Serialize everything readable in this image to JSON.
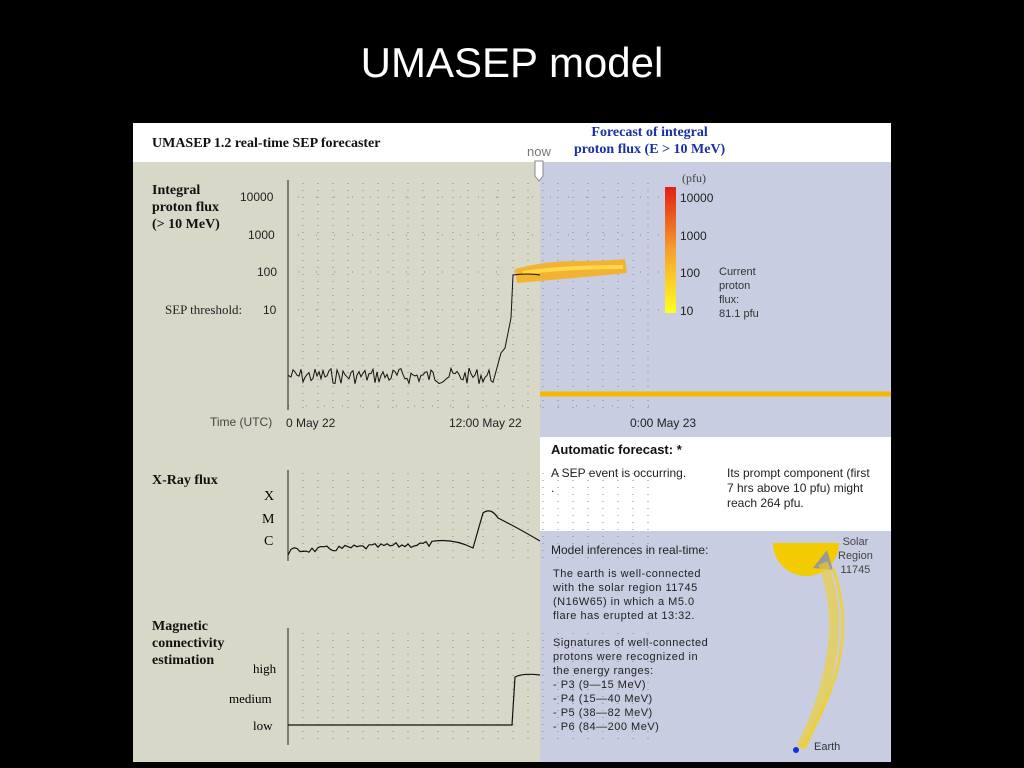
{
  "slide_title": "UMASEP model",
  "header": {
    "title": "UMASEP 1.2  real-time SEP forecaster",
    "now_label": "now",
    "forecast_title": [
      "Forecast of integral",
      "proton flux (E > 10 MeV)"
    ]
  },
  "proton_chart": {
    "label": [
      "Integral",
      "proton flux",
      "(> 10 MeV)"
    ],
    "yticks": [
      "10000",
      "1000",
      "100",
      "10"
    ],
    "threshold_label": "SEP threshold:",
    "time_label": "Time (UTC)",
    "time_ticks": [
      "0  May  22",
      "12:00 May  22",
      "0:00  May  23"
    ]
  },
  "forecast_scale": {
    "unit": "(pfu)",
    "ticks": [
      "10000",
      "1000",
      "100",
      "10"
    ],
    "current": [
      "Current",
      "proton",
      "flux:",
      "81.1 pfu"
    ]
  },
  "automatic_forecast": {
    "title": "Automatic forecast: *",
    "status": [
      "A SEP event is occurring.",
      "."
    ],
    "prediction": [
      "Its prompt component (first",
      "7 hrs above 10 pfu) might",
      "reach 264 pfu."
    ]
  },
  "xray_chart": {
    "label": "X-Ray flux",
    "classes": [
      "X",
      "M",
      "C"
    ]
  },
  "connectivity_chart": {
    "label": [
      "Magnetic",
      "connectivity",
      "estimation"
    ],
    "levels": [
      "high",
      "medium",
      "low"
    ]
  },
  "inferences": {
    "title": "Model inferences in real-time:",
    "paragraph1": [
      "The earth is well-connected",
      "with the solar region 11745",
      "(N16W65) in which a M5.0",
      "flare has erupted at 13:32."
    ],
    "paragraph2": [
      "Signatures of well-connected",
      "protons were recognized in",
      "the energy ranges:",
      "- P3 (9—15 MeV)",
      "- P4 (15—40 MeV)",
      "- P5 (38—82 MeV)",
      "- P6 (84—200 MeV)"
    ]
  },
  "diagram": {
    "region_label": [
      "Solar",
      "Region",
      "11745"
    ],
    "earth_label": "Earth"
  }
}
